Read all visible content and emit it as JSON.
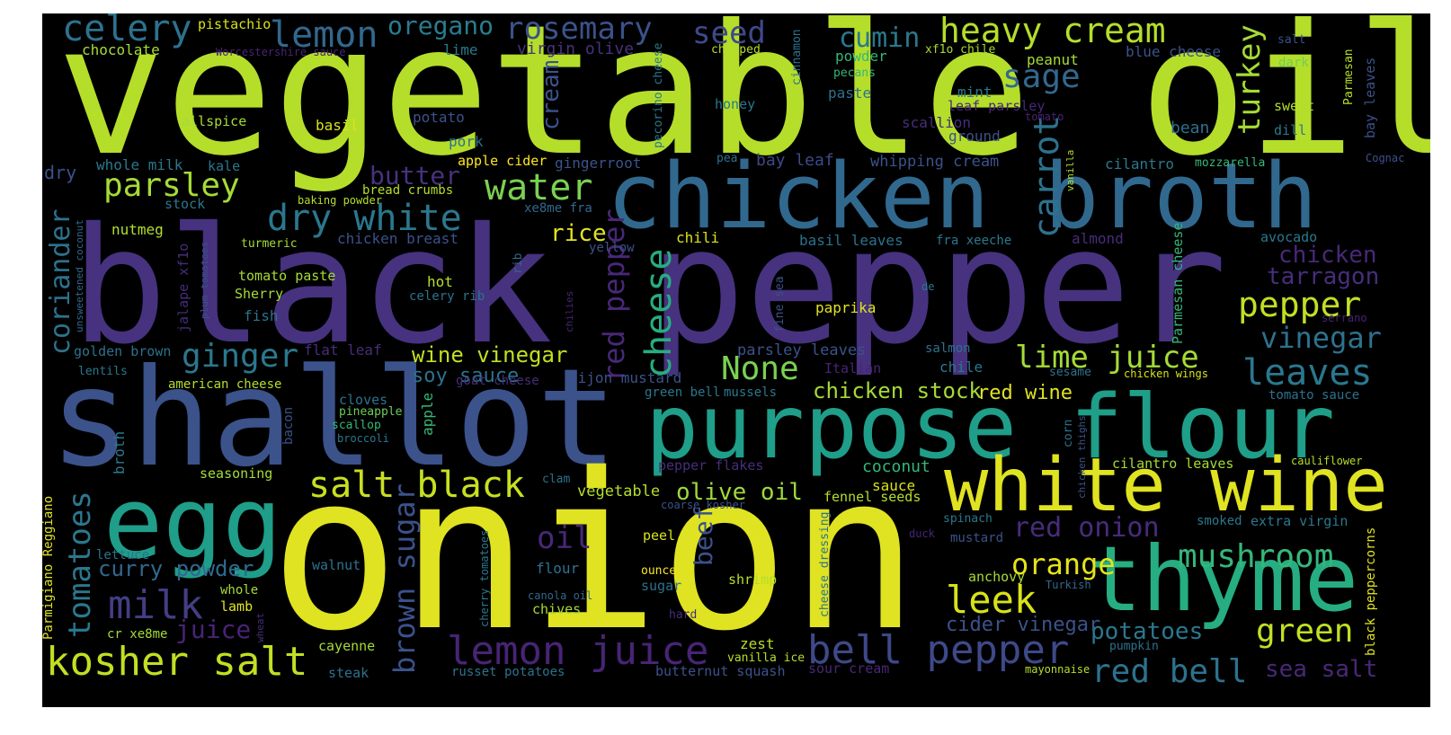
{
  "palette": {
    "lime": "#b5de2b",
    "yellow": "#e0e321",
    "green": "#6ece58",
    "teal": "#1f9e89",
    "blue": "#3e4989",
    "indigo": "#46327e",
    "purple": "#440154"
  },
  "words": {
    "vegetable_oil": "vegetable oil",
    "black_pepper": "black pepper",
    "shallot": "shallot",
    "onion": "onion",
    "chicken_broth": "chicken broth",
    "purpose_flour": "purpose flour",
    "egg": "egg",
    "white_wine": "white wine",
    "thyme": "thyme",
    "lemon_juice": "lemon juice",
    "bell_pepper": "bell pepper",
    "kosher_salt": "kosher salt",
    "salt_black": "salt black",
    "milk": "milk",
    "leek": "leek",
    "mushroom": "mushroom",
    "red_bell": "red bell",
    "green": "green",
    "orange": "orange",
    "red_onion": "red onion",
    "celery": "celery",
    "lemon": "lemon",
    "oregano": "oregano",
    "rosemary": "rosemary",
    "seed": "seed",
    "cumin": "cumin",
    "heavy_cream": "heavy cream",
    "parsley": "parsley",
    "water": "water",
    "dry_white": "dry white",
    "butter": "butter",
    "sage": "sage",
    "carrot": "carrot",
    "turkey": "turkey",
    "cheese": "cheese",
    "red_pepper": "red pepper",
    "None": "None",
    "pepper": "pepper",
    "vinegar": "vinegar",
    "leaves": "leaves",
    "lime_juice": "lime juice",
    "ginger": "ginger",
    "wine_vinegar": "wine vinegar",
    "soy_sauce": "soy sauce",
    "rice": "rice",
    "olive_oil": "olive oil",
    "oil": "oil",
    "tomatoes": "tomatoes",
    "brown_sugar": "brown sugar",
    "coriander": "coriander",
    "curry_powder": "curry powder",
    "juice": "juice",
    "chicken_stock": "chicken stock",
    "red_wine": "red wine",
    "chicken": "chicken",
    "tarragon": "tarragon",
    "potatoes": "potatoes",
    "sea_salt": "sea salt",
    "cider_vinegar": "cider vinegar",
    "beef": "beef",
    "pistachio": "pistachio",
    "chocolate": "chocolate",
    "worcestershire": "Worcestershire sauce",
    "lime": "lime",
    "virgin_olive": "virgin olive",
    "chopped": "chopped",
    "cinnamon": "cinnamon",
    "pecorino": "pecorino cheese",
    "powder": "powder",
    "pecans": "pecans",
    "paste": "paste",
    "xf1o_chile": "xf1o chile",
    "peanut": "peanut",
    "blue_cheese": "blue cheese",
    "salt": "salt",
    "dark": "dark",
    "parmesan": "Parmesan",
    "bay_leaves": "bay leaves",
    "mint": "mint",
    "allspice": "allspice",
    "basil": "basil",
    "potato": "potato",
    "cream": "cream",
    "honey": "honey",
    "scallion": "scallion",
    "leaf_parsley": "leaf parsley",
    "tomato": "tomato",
    "bean": "bean",
    "sweet": "sweet",
    "dill": "dill",
    "pork": "pork",
    "ground": "ground",
    "dry": "dry",
    "whole_milk": "whole milk",
    "kale": "kale",
    "apple_cider": "apple cider",
    "gingerroot": "gingerroot",
    "pea": "pea",
    "bay_leaf": "bay leaf",
    "whipping_cream": "whipping cream",
    "cilantro": "cilantro",
    "mozzarella": "mozzarella",
    "cognac": "Cognac",
    "vanilla": "vanilla",
    "baking_powder": "baking powder",
    "bread_crumbs": "bread crumbs",
    "stock": "stock",
    "xe8me_fra": "xe8me fra",
    "nutmeg": "nutmeg",
    "unsweetened": "unsweetened coconut",
    "turmeric": "turmeric",
    "chicken_breast": "chicken breast",
    "yellow": "yellow",
    "chili": "chili",
    "basil_leaves": "basil leaves",
    "fra_xeeche": "fra xeeche",
    "almond": "almond",
    "avocado": "avocado",
    "rib": "rib",
    "jalape": "jalape xf1o",
    "plum_tomatoes": "plum tomatoes",
    "tomato_paste": "tomato paste",
    "sherry": "Sherry",
    "hot": "hot",
    "celery_rib": "celery rib",
    "chilies": "chilies",
    "fine_sea": "fine sea",
    "de": "de",
    "parmesan_cheese": "Parmesan cheese",
    "fish": "fish",
    "paprika": "paprika",
    "serrano": "serrano",
    "golden_brown": "golden brown",
    "flat_leaf": "flat leaf",
    "parsley_leaves": "parsley leaves",
    "salmon": "salmon",
    "lentils": "lentils",
    "italian": "Italian",
    "chile": "chile",
    "sesame": "sesame",
    "chicken_wings": "chicken wings",
    "american_cheese": "american cheese",
    "goat_cheese": "goat cheese",
    "dijon": "Dijon mustard",
    "green_bell": "green bell",
    "mussels": "mussels",
    "tomato_sauce": "tomato sauce",
    "cloves": "cloves",
    "pineapple": "pineapple",
    "scallop": "scallop",
    "broccoli": "broccoli",
    "bacon": "bacon",
    "apple": "apple",
    "broth": "broth",
    "corn": "corn",
    "chicken_thighs": "chicken thighs",
    "parmigiano": "Parmigiano Reggiano",
    "seasoning": "seasoning",
    "clam": "clam",
    "pepper_flakes": "pepper flakes",
    "coconut": "coconut",
    "cilantro_leaves": "cilantro leaves",
    "cauliflower": "cauliflower",
    "vegetable": "vegetable",
    "sauce": "sauce",
    "fennel_seeds": "fennel seeds",
    "coarse_kosher": "coarse kosher",
    "spinach": "spinach",
    "smoked": "smoked",
    "extra_virgin": "extra virgin",
    "black_peppercorns": "black peppercorns",
    "lettuce": "lettuce",
    "cherry_tomatoes": "cherry tomatoes",
    "peel": "peel",
    "duck": "duck",
    "mustard": "mustard",
    "walnut": "walnut",
    "flour": "flour",
    "ounce": "ounce",
    "anchovy": "anchovy",
    "whole": "whole",
    "sugar": "sugar",
    "shrimp": "shrimp",
    "canola_oil": "canola oil",
    "lamb": "lamb",
    "turkish": "Turkish",
    "chives": "chives",
    "hard": "hard",
    "cheese_dressing": "cheese dressing",
    "cr_xe8me": "cr xe8me",
    "wheat": "wheat",
    "cayenne": "cayenne",
    "zest": "zest",
    "vanilla_ice": "vanilla ice",
    "pumpkin": "pumpkin",
    "steak": "steak",
    "russet": "russet potatoes",
    "butternut": "butternut squash",
    "sour_cream": "sour cream",
    "mayonnaise": "mayonnaise"
  }
}
